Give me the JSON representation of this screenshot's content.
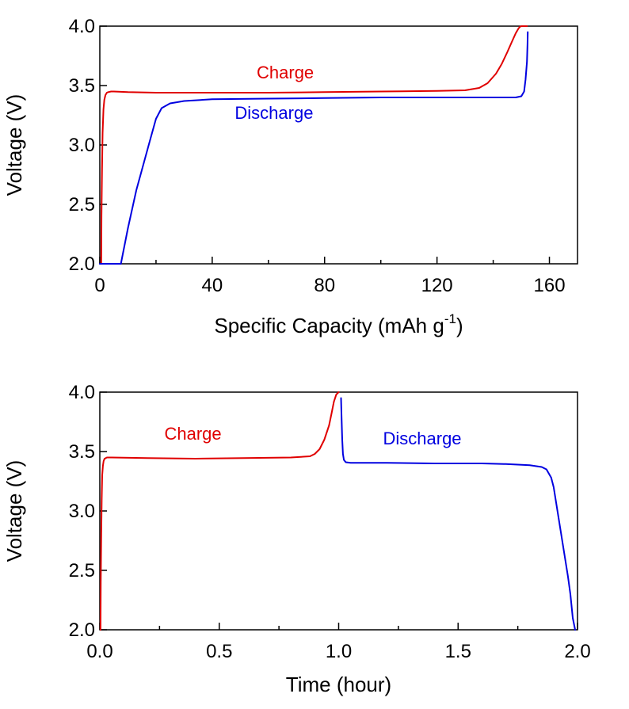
{
  "chart_data": [
    {
      "type": "line",
      "title": "",
      "xlabel": "Specific Capacity (mAh g",
      "xlabel_sup": "-1",
      "xlabel_suffix": ")",
      "ylabel": "Voltage (V)",
      "xlim": [
        0,
        170
      ],
      "ylim": [
        2.0,
        4.0
      ],
      "x_ticks": [
        0,
        40,
        80,
        120,
        160
      ],
      "x_tick_labels": [
        "0",
        "40",
        "80",
        "120",
        "160"
      ],
      "x_minor_ticks": [
        20,
        60,
        100,
        140
      ],
      "y_ticks": [
        2.0,
        2.5,
        3.0,
        3.5,
        4.0
      ],
      "y_tick_labels": [
        "2.0",
        "2.5",
        "3.0",
        "3.5",
        "4.0"
      ],
      "grid": false,
      "series": [
        {
          "name": "Charge",
          "color": "#e00000",
          "x": [
            0.5,
            0.6,
            0.8,
            1.0,
            1.3,
            1.6,
            2.0,
            2.5,
            3.0,
            4.0,
            5.0,
            10,
            20,
            40,
            60,
            80,
            100,
            120,
            130,
            135,
            138,
            141,
            143,
            145,
            146.5,
            148,
            149,
            149.5,
            150,
            152
          ],
          "y": [
            2.0,
            2.4,
            2.8,
            3.1,
            3.3,
            3.38,
            3.42,
            3.44,
            3.445,
            3.45,
            3.45,
            3.445,
            3.44,
            3.44,
            3.44,
            3.445,
            3.45,
            3.455,
            3.46,
            3.48,
            3.52,
            3.6,
            3.68,
            3.78,
            3.86,
            3.94,
            3.98,
            3.995,
            4.0,
            4.0
          ]
        },
        {
          "name": "Discharge",
          "color": "#0000e0",
          "x": [
            0,
            7.5,
            10,
            13,
            16,
            18,
            20,
            22,
            25,
            30,
            40,
            60,
            80,
            100,
            120,
            140,
            148,
            150,
            151,
            151.5,
            152,
            152.2,
            152.3
          ],
          "y": [
            2.0,
            2.0,
            2.3,
            2.62,
            2.88,
            3.05,
            3.22,
            3.31,
            3.35,
            3.37,
            3.385,
            3.39,
            3.395,
            3.4,
            3.4,
            3.4,
            3.4,
            3.41,
            3.45,
            3.55,
            3.7,
            3.85,
            3.95
          ]
        }
      ],
      "annotations": [
        {
          "text": "Charge",
          "color": "#e00000",
          "x": 66,
          "y": 3.56
        },
        {
          "text": "Discharge",
          "color": "#0000e0",
          "x": 62,
          "y": 3.22
        }
      ]
    },
    {
      "type": "line",
      "title": "",
      "xlabel": "Time (hour)",
      "ylabel": "Voltage (V)",
      "xlim": [
        0.0,
        2.0
      ],
      "ylim": [
        2.0,
        4.0
      ],
      "x_ticks": [
        0.0,
        0.5,
        1.0,
        1.5,
        2.0
      ],
      "x_tick_labels": [
        "0.0",
        "0.5",
        "1.0",
        "1.5",
        "2.0"
      ],
      "x_minor_ticks": [
        0.25,
        0.75,
        1.25,
        1.75
      ],
      "y_ticks": [
        2.0,
        2.5,
        3.0,
        3.5,
        4.0
      ],
      "y_tick_labels": [
        "2.0",
        "2.5",
        "3.0",
        "3.5",
        "4.0"
      ],
      "grid": false,
      "series": [
        {
          "name": "Charge",
          "color": "#e00000",
          "x": [
            0.003,
            0.004,
            0.006,
            0.008,
            0.01,
            0.013,
            0.016,
            0.02,
            0.025,
            0.03,
            0.05,
            0.2,
            0.4,
            0.6,
            0.8,
            0.88,
            0.9,
            0.92,
            0.94,
            0.96,
            0.97,
            0.98,
            0.99,
            1.0
          ],
          "y": [
            2.0,
            2.4,
            2.8,
            3.1,
            3.3,
            3.38,
            3.42,
            3.44,
            3.445,
            3.45,
            3.45,
            3.445,
            3.44,
            3.445,
            3.45,
            3.46,
            3.48,
            3.52,
            3.6,
            3.72,
            3.82,
            3.92,
            3.98,
            4.0
          ]
        },
        {
          "name": "Discharge",
          "color": "#0000e0",
          "x": [
            1.01,
            1.012,
            1.015,
            1.018,
            1.022,
            1.03,
            1.05,
            1.2,
            1.4,
            1.6,
            1.7,
            1.8,
            1.85,
            1.87,
            1.89,
            1.9,
            1.92,
            1.94,
            1.96,
            1.97,
            1.98,
            1.99
          ],
          "y": [
            3.95,
            3.8,
            3.6,
            3.48,
            3.43,
            3.41,
            3.405,
            3.405,
            3.4,
            3.4,
            3.395,
            3.385,
            3.37,
            3.35,
            3.28,
            3.2,
            2.95,
            2.7,
            2.45,
            2.3,
            2.1,
            2.0
          ]
        }
      ],
      "annotations": [
        {
          "text": "Charge",
          "color": "#e00000",
          "x": 0.39,
          "y": 3.6
        },
        {
          "text": "Discharge",
          "color": "#0000e0",
          "x": 1.35,
          "y": 3.56
        }
      ]
    }
  ]
}
